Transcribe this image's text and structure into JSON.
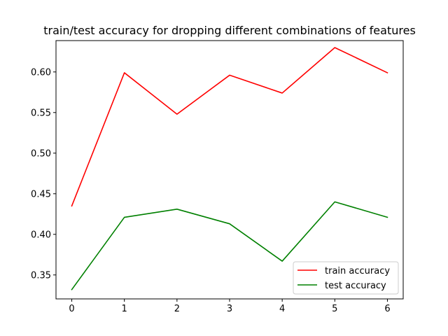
{
  "chart_data": {
    "type": "line",
    "title": "train/test accuracy for dropping different combinations of features",
    "xlabel": "",
    "ylabel": "",
    "x": [
      0,
      1,
      2,
      3,
      4,
      5,
      6
    ],
    "xticks": [
      "0",
      "1",
      "2",
      "3",
      "4",
      "5",
      "6"
    ],
    "yticks": [
      "0.35",
      "0.40",
      "0.45",
      "0.50",
      "0.55",
      "0.60"
    ],
    "xlim": [
      -0.3,
      6.3
    ],
    "ylim": [
      0.3205,
      0.6386
    ],
    "grid": false,
    "legend_position": "lower-right",
    "series": [
      {
        "name": "train accuracy",
        "color": "#ff0000",
        "values": [
          0.435,
          0.599,
          0.548,
          0.596,
          0.574,
          0.63,
          0.599
        ]
      },
      {
        "name": "test accuracy",
        "color": "#008000",
        "values": [
          0.332,
          0.421,
          0.431,
          0.413,
          0.367,
          0.44,
          0.421
        ]
      }
    ]
  }
}
